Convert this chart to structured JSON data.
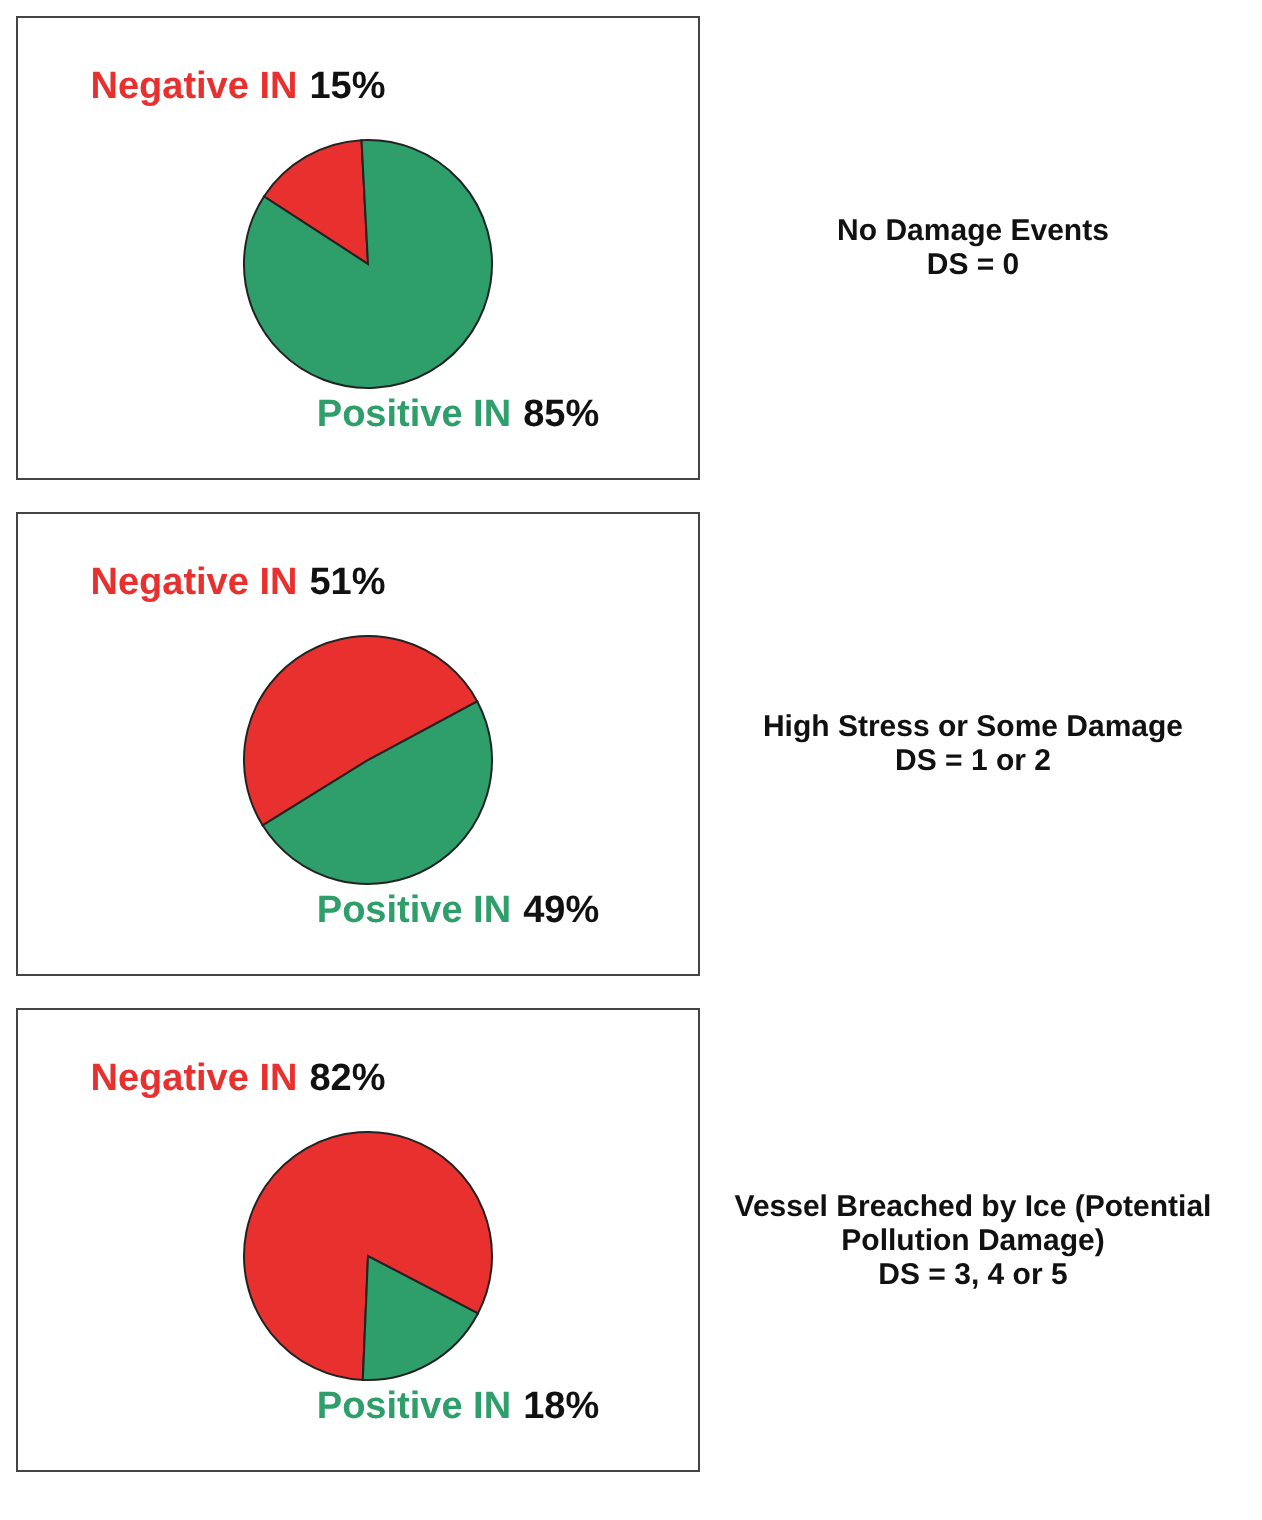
{
  "chart_data": [
    {
      "type": "pie",
      "title": "No Damage Events",
      "subtitle": "DS = 0",
      "categories": [
        "Negative IN",
        "Positive IN"
      ],
      "values": [
        15,
        85
      ],
      "value_labels": [
        "15%",
        "85%"
      ],
      "colors": [
        "#e8312f",
        "#2e9e6a"
      ]
    },
    {
      "type": "pie",
      "title": "High Stress or Some Damage",
      "subtitle": "DS = 1 or 2",
      "categories": [
        "Negative IN",
        "Positive IN"
      ],
      "values": [
        51,
        49
      ],
      "value_labels": [
        "51%",
        "49%"
      ],
      "colors": [
        "#e8312f",
        "#2e9e6a"
      ]
    },
    {
      "type": "pie",
      "title": "Vessel Breached by Ice (Potential Pollution Damage)",
      "subtitle": "DS = 3, 4 or 5",
      "categories": [
        "Negative IN",
        "Positive IN"
      ],
      "values": [
        82,
        18
      ],
      "value_labels": [
        "82%",
        "18%"
      ],
      "colors": [
        "#e8312f",
        "#2e9e6a"
      ]
    }
  ]
}
